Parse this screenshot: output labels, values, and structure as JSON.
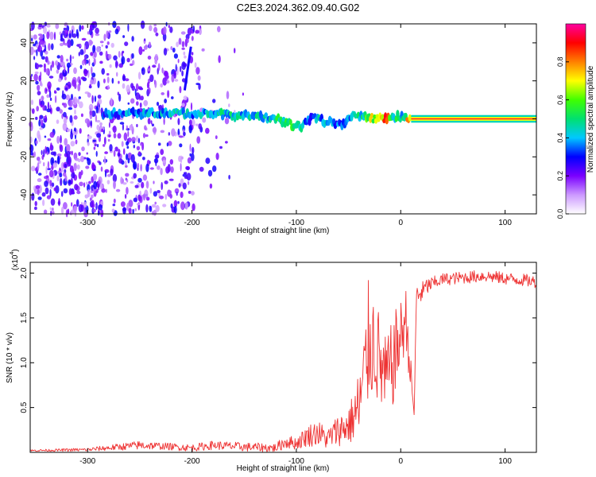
{
  "title": "C2E3.2024.362.09.40.G02",
  "colors": {
    "snr_line": "#ee3333",
    "spectrum_scatter": "#8a2be2",
    "band_core": "#ff2030",
    "colormap": [
      "#ffffff",
      "#cc99ff",
      "#7a00ff",
      "#0000ff",
      "#00c8ff",
      "#00e070",
      "#40ff00",
      "#ffff00",
      "#ff8000",
      "#ff0000",
      "#ff00a0"
    ]
  },
  "chart_data": [
    {
      "type": "heatmap",
      "xlabel": "Height of straight line (km)",
      "ylabel": "Frequency (Hz)",
      "xlim": [
        -355,
        130
      ],
      "ylim": [
        -50,
        50
      ],
      "xticks": [
        -300,
        -200,
        -100,
        0,
        100
      ],
      "yticks": [
        -40,
        -20,
        0,
        20,
        40
      ],
      "xtick_labels": [
        "-300",
        "-200",
        "-100",
        "0",
        "100"
      ],
      "ytick_labels": [
        "-40",
        "-20",
        "0",
        "20",
        "40"
      ],
      "colorbar": {
        "label": "Normalized spectral amplitude",
        "range": [
          0,
          1
        ],
        "ticks": [
          0.0,
          0.2,
          0.4,
          0.6,
          0.8
        ],
        "tick_labels": [
          "0.0",
          "0.2",
          "0.4",
          "0.6",
          "0.8"
        ]
      },
      "band_trace": {
        "x": [
          -285,
          -250,
          -215,
          -190,
          -160,
          -140,
          -120,
          -105,
          -95,
          -85,
          -75,
          -65,
          -55,
          -45,
          -35,
          -25,
          -15,
          -5,
          0,
          10,
          40,
          80,
          130
        ],
        "y": [
          3,
          3,
          3,
          2.5,
          2,
          1.5,
          0,
          -3,
          -4,
          1,
          -1,
          -2,
          -3,
          2,
          1,
          0,
          0.5,
          1,
          1.5,
          0,
          0,
          0,
          0
        ],
        "amplitude": [
          0.35,
          0.35,
          0.4,
          0.4,
          0.45,
          0.4,
          0.45,
          0.5,
          0.4,
          0.35,
          0.4,
          0.35,
          0.35,
          0.4,
          0.5,
          0.7,
          0.8,
          0.5,
          0.4,
          0.95,
          0.95,
          0.95,
          0.95
        ]
      },
      "background_scatter_x_range": [
        -355,
        -190
      ]
    },
    {
      "type": "line",
      "xlabel": "Height of straight line (km)",
      "ylabel": "SNR (10 * v/v)",
      "yscale_label": "(x10",
      "yscale_exponent": "4",
      "xlim": [
        -355,
        130
      ],
      "ylim": [
        0,
        2.12
      ],
      "xticks": [
        -300,
        -200,
        -100,
        0,
        100
      ],
      "yticks": [
        0.5,
        1.0,
        1.5,
        2.0
      ],
      "xtick_labels": [
        "-300",
        "-200",
        "-100",
        "0",
        "100"
      ],
      "ytick_labels": [
        "0.5",
        "1.0",
        "1.5",
        "2.0"
      ],
      "series": [
        {
          "x": [
            -355,
            -300,
            -250,
            -230,
            -200,
            -180,
            -150,
            -120,
            -110,
            -100,
            -90,
            -80,
            -70,
            -60,
            -50,
            -45,
            -40,
            -35,
            -30,
            -25,
            -20,
            -15,
            -10,
            -5,
            0,
            5,
            10,
            13,
            15,
            20,
            25,
            30,
            40,
            60,
            80,
            100,
            120,
            130
          ],
          "y": [
            0.02,
            0.03,
            0.08,
            0.07,
            0.05,
            0.08,
            0.06,
            0.05,
            0.12,
            0.1,
            0.18,
            0.22,
            0.15,
            0.25,
            0.3,
            0.4,
            0.5,
            0.8,
            1.3,
            1.2,
            1.0,
            0.8,
            0.9,
            1.1,
            1.3,
            1.5,
            0.8,
            0.42,
            1.75,
            1.78,
            1.85,
            1.88,
            1.93,
            1.95,
            1.97,
            1.94,
            1.92,
            1.9
          ],
          "spread": [
            0.01,
            0.02,
            0.05,
            0.04,
            0.04,
            0.05,
            0.05,
            0.05,
            0.08,
            0.07,
            0.12,
            0.15,
            0.12,
            0.18,
            0.22,
            0.3,
            0.45,
            0.6,
            0.75,
            0.6,
            0.55,
            0.5,
            0.5,
            0.5,
            0.4,
            0.35,
            0.2,
            0.05,
            0.15,
            0.12,
            0.1,
            0.08,
            0.07,
            0.07,
            0.07,
            0.07,
            0.07,
            0.07
          ]
        }
      ]
    }
  ]
}
